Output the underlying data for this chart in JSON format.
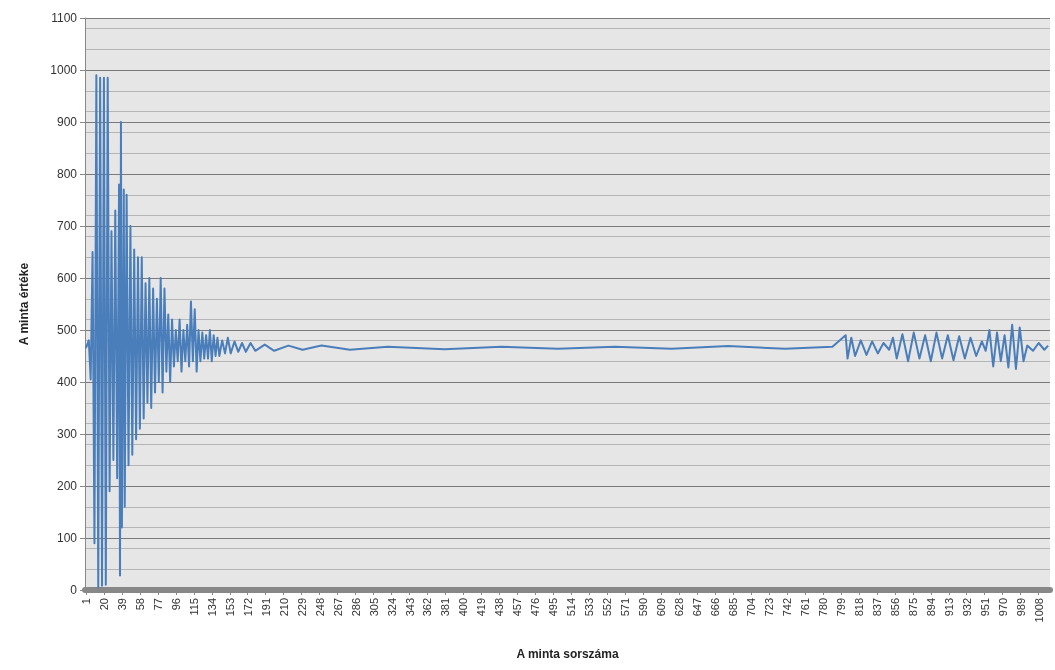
{
  "chart_data": {
    "type": "line",
    "xlabel": "A minta sorszáma",
    "ylabel": "A minta értéke",
    "xlim": [
      0,
      1020
    ],
    "xticks": [
      1,
      20,
      39,
      58,
      77,
      96,
      115,
      134,
      153,
      172,
      191,
      210,
      229,
      248,
      267,
      286,
      305,
      324,
      343,
      362,
      381,
      400,
      419,
      438,
      457,
      476,
      495,
      514,
      533,
      552,
      571,
      590,
      609,
      628,
      647,
      666,
      685,
      704,
      723,
      742,
      761,
      780,
      799,
      818,
      837,
      856,
      875,
      894,
      913,
      932,
      951,
      970,
      989,
      1008
    ],
    "ylim": [
      0,
      1100
    ],
    "yticks": [
      0,
      100,
      200,
      300,
      400,
      500,
      600,
      700,
      800,
      900,
      1000,
      1100
    ],
    "grid": "y",
    "marker": "none",
    "line_style": "solid",
    "series": [
      {
        "color": "#4a7ebb",
        "x": [
          1,
          4,
          6,
          8,
          10,
          12,
          14,
          16,
          18,
          20,
          22,
          24,
          26,
          28,
          30,
          32,
          34,
          36,
          37,
          38,
          39,
          41,
          42,
          44,
          46,
          48,
          50,
          52,
          54,
          56,
          58,
          60,
          62,
          64,
          66,
          68,
          70,
          72,
          74,
          76,
          78,
          80,
          82,
          84,
          86,
          88,
          90,
          92,
          94,
          96,
          98,
          100,
          102,
          104,
          106,
          108,
          110,
          112,
          114,
          116,
          118,
          120,
          122,
          124,
          126,
          128,
          130,
          132,
          134,
          136,
          138,
          140,
          142,
          145,
          148,
          151,
          154,
          158,
          162,
          166,
          170,
          175,
          180,
          190,
          200,
          215,
          230,
          250,
          280,
          320,
          380,
          440,
          500,
          560,
          620,
          680,
          740,
          790,
          804,
          806,
          810,
          814,
          820,
          826,
          832,
          838,
          844,
          850,
          854,
          858,
          864,
          870,
          876,
          882,
          888,
          894,
          900,
          906,
          912,
          918,
          924,
          930,
          936,
          942,
          948,
          952,
          956,
          960,
          964,
          968,
          972,
          976,
          980,
          984,
          988,
          992,
          996,
          1002,
          1008,
          1014,
          1018
        ],
        "values": [
          465,
          480,
          405,
          650,
          90,
          990,
          5,
          985,
          8,
          985,
          10,
          985,
          190,
          690,
          250,
          730,
          215,
          780,
          28,
          900,
          120,
          770,
          160,
          760,
          240,
          700,
          260,
          655,
          290,
          640,
          310,
          640,
          330,
          590,
          360,
          600,
          350,
          580,
          380,
          560,
          400,
          600,
          380,
          580,
          420,
          530,
          400,
          520,
          430,
          500,
          440,
          520,
          420,
          500,
          440,
          510,
          430,
          555,
          440,
          540,
          420,
          500,
          440,
          495,
          445,
          490,
          445,
          500,
          440,
          490,
          450,
          485,
          450,
          480,
          455,
          485,
          455,
          478,
          458,
          475,
          458,
          475,
          460,
          472,
          460,
          470,
          462,
          470,
          462,
          468,
          463,
          468,
          464,
          468,
          464,
          469,
          464,
          468,
          490,
          445,
          485,
          450,
          480,
          452,
          478,
          455,
          475,
          462,
          485,
          445,
          492,
          440,
          495,
          445,
          490,
          440,
          495,
          445,
          490,
          442,
          488,
          445,
          485,
          450,
          478,
          460,
          500,
          430,
          495,
          440,
          490,
          428,
          510,
          425,
          505,
          440,
          470,
          460,
          475,
          462,
          470
        ]
      }
    ]
  }
}
